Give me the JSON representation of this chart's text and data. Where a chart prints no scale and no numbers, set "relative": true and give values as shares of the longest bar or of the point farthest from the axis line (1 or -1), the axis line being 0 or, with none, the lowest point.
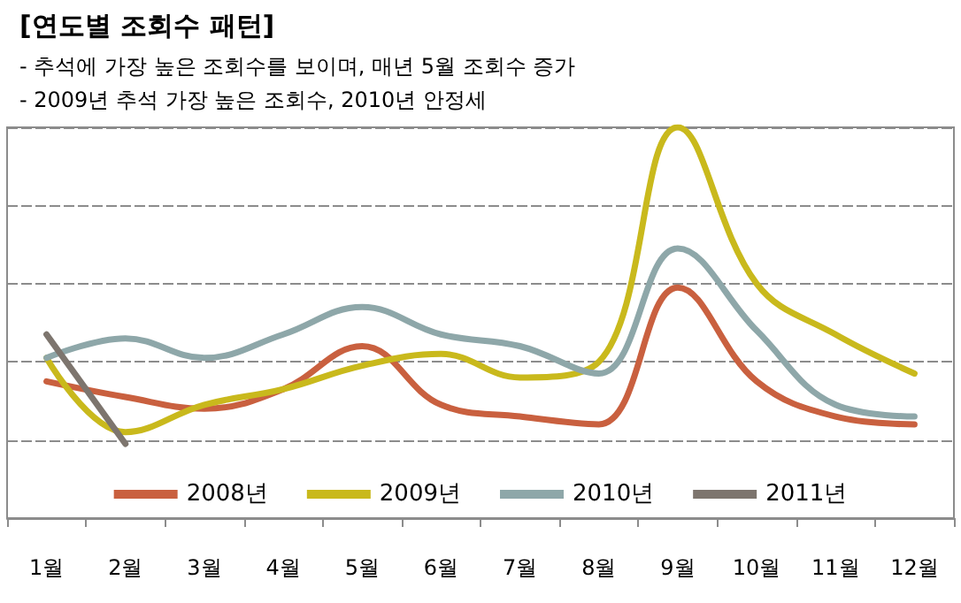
{
  "chart_data": {
    "type": "line",
    "title": "[연도별 조회수 패턴]",
    "subtitle": "- 추석에 가장 높은 조회수를 보이며, 매년 5월 조회수 증가\n- 2009년 추석 가장 높은 조회수, 2010년 안정세",
    "categories": [
      "1월",
      "2월",
      "3월",
      "4월",
      "5월",
      "6월",
      "7월",
      "8월",
      "9월",
      "10월",
      "11월",
      "12월"
    ],
    "relative": true,
    "grid": "y",
    "legend": "bottom",
    "marker": "none",
    "line_style": "solid",
    "series": [
      {
        "name": "2008년",
        "color": "#c9603f",
        "values": [
          0.35,
          0.31,
          0.28,
          0.33,
          0.44,
          0.29,
          0.26,
          0.24,
          0.59,
          0.35,
          0.26,
          0.24
        ]
      },
      {
        "name": "2009년",
        "color": "#c9b91c",
        "values": [
          0.41,
          0.22,
          0.29,
          0.33,
          0.39,
          0.42,
          0.36,
          0.4,
          1,
          0.6,
          0.47,
          0.37
        ]
      },
      {
        "name": "2010년",
        "color": "#8ea7a9",
        "values": [
          0.41,
          0.46,
          0.41,
          0.47,
          0.54,
          0.47,
          0.44,
          0.37,
          0.69,
          0.48,
          0.29,
          0.26
        ]
      },
      {
        "name": "2011년",
        "color": "#7d756e",
        "values": [
          0.47,
          0.19,
          null,
          null,
          null,
          null,
          null,
          null,
          null,
          null,
          null,
          null
        ]
      }
    ]
  }
}
